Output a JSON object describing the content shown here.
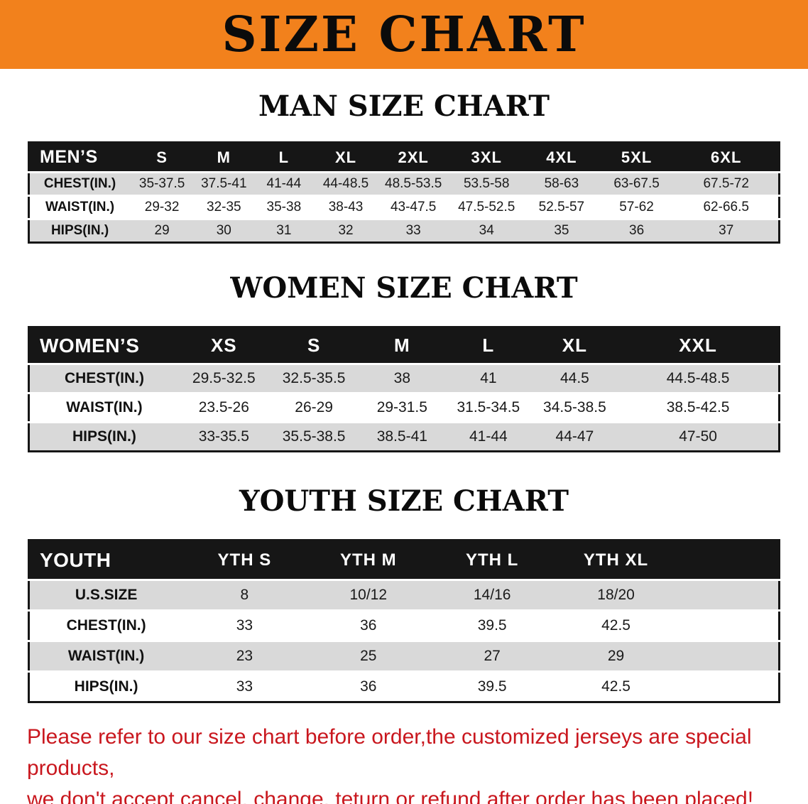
{
  "banner": {
    "title": "SIZE CHART"
  },
  "men": {
    "heading": "MAN SIZE CHART",
    "table": {
      "header": [
        "MEN’S",
        "S",
        "M",
        "L",
        "XL",
        "2XL",
        "3XL",
        "4XL",
        "5XL",
        "6XL"
      ],
      "rows": [
        [
          "CHEST(IN.)",
          "35-37.5",
          "37.5-41",
          "41-44",
          "44-48.5",
          "48.5-53.5",
          "53.5-58",
          "58-63",
          "63-67.5",
          "67.5-72"
        ],
        [
          "WAIST(IN.)",
          "29-32",
          "32-35",
          "35-38",
          "38-43",
          "43-47.5",
          "47.5-52.5",
          "52.5-57",
          "57-62",
          "62-66.5"
        ],
        [
          "HIPS(IN.)",
          "29",
          "30",
          "31",
          "32",
          "33",
          "34",
          "35",
          "36",
          "37"
        ]
      ]
    }
  },
  "women": {
    "heading": "WOMEN SIZE CHART",
    "table": {
      "header": [
        "WOMEN’S",
        "XS",
        "S",
        "M",
        "L",
        "XL",
        "XXL"
      ],
      "rows": [
        [
          "CHEST(IN.)",
          "29.5-32.5",
          "32.5-35.5",
          "38",
          "41",
          "44.5",
          "44.5-48.5"
        ],
        [
          "WAIST(IN.)",
          "23.5-26",
          "26-29",
          "29-31.5",
          "31.5-34.5",
          "34.5-38.5",
          "38.5-42.5"
        ],
        [
          "HIPS(IN.)",
          "33-35.5",
          "35.5-38.5",
          "38.5-41",
          "41-44",
          "44-47",
          "47-50"
        ]
      ]
    }
  },
  "youth": {
    "heading": "YOUTH SIZE CHART",
    "table": {
      "header": [
        "YOUTH",
        "YTH S",
        "YTH M",
        "YTH L",
        "YTH XL"
      ],
      "rows": [
        [
          "U.S.SIZE",
          "8",
          "10/12",
          "14/16",
          "18/20"
        ],
        [
          "CHEST(IN.)",
          "33",
          "36",
          "39.5",
          "42.5"
        ],
        [
          "WAIST(IN.)",
          "23",
          "25",
          "27",
          "29"
        ],
        [
          "HIPS(IN.)",
          "33",
          "36",
          "39.5",
          "42.5"
        ]
      ]
    }
  },
  "footer": {
    "line1": "Please refer to our size chart before order,the customized jerseys are special products,",
    "line2": "we don't accept cancel, change, teturn or refund after order has been placed!"
  },
  "colors": {
    "banner_bg": "#F2811C",
    "banner_text": "#0B0B0B",
    "table_header_bg": "#161616",
    "table_header_text": "#FFFFFF",
    "row_stripe": "#D9D9D9",
    "notice_text": "#C9171E"
  }
}
